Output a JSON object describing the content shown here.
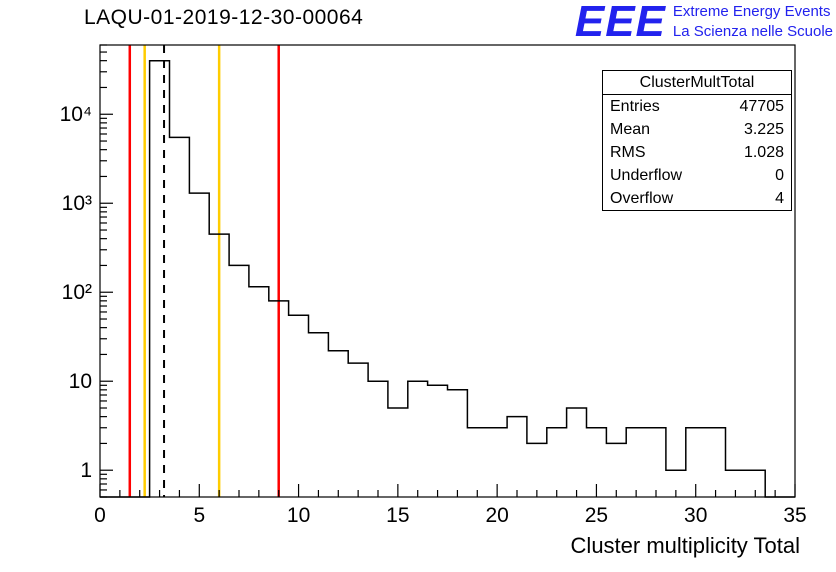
{
  "page": {
    "title": "LAQU-01-2019-12-30-00064"
  },
  "logo": {
    "mark": "EEE",
    "line1": "Extreme Energy Events",
    "line2": "La Scienza nelle Scuole",
    "color": "#2222ee"
  },
  "stats_box": {
    "title": "ClusterMultTotal",
    "rows": [
      {
        "label": "Entries",
        "value": "47705"
      },
      {
        "label": "Mean",
        "value": "3.225"
      },
      {
        "label": "RMS",
        "value": "1.028"
      },
      {
        "label": "Underflow",
        "value": "0"
      },
      {
        "label": "Overflow",
        "value": "4"
      }
    ]
  },
  "chart_data": {
    "type": "bar",
    "subtype": "step-outline-histogram",
    "title": "LAQU-01-2019-12-30-00064",
    "xlabel": "Cluster multiplicity Total",
    "ylabel": "",
    "yscale": "log",
    "grid": false,
    "legend": false,
    "xlim": [
      0,
      35
    ],
    "ylim": [
      0.5,
      60000
    ],
    "bin_width": 1,
    "bin_centers": [
      0,
      1,
      2,
      3,
      4,
      5,
      6,
      7,
      8,
      9,
      10,
      11,
      12,
      13,
      14,
      15,
      16,
      17,
      18,
      19,
      20,
      21,
      22,
      23,
      24,
      25,
      26,
      27,
      28,
      29,
      30,
      31,
      32,
      33,
      34,
      35
    ],
    "values": [
      0,
      0,
      0,
      40000,
      5500,
      1300,
      450,
      200,
      115,
      80,
      55,
      35,
      22,
      16,
      10,
      5,
      10,
      9,
      8,
      3,
      3,
      4,
      2,
      3,
      5,
      3,
      2,
      3,
      3,
      1,
      3,
      3,
      1,
      1,
      0,
      0
    ],
    "line_color": "#000000",
    "x_major_ticks": [
      0,
      5,
      10,
      15,
      20,
      25,
      30,
      35
    ],
    "y_major_ticks": [
      {
        "value": 1,
        "label": "1"
      },
      {
        "value": 10,
        "label": "10"
      },
      {
        "value": 100,
        "label": "10²"
      },
      {
        "value": 1000,
        "label": "10³"
      },
      {
        "value": 10000,
        "label": "10⁴"
      }
    ],
    "vlines": [
      {
        "x": 1.5,
        "color": "#ff0000",
        "style": "solid",
        "meaning": "lower-error-threshold"
      },
      {
        "x": 2.25,
        "color": "#ffcc00",
        "style": "solid",
        "meaning": "lower-warning-threshold"
      },
      {
        "x": 3.225,
        "color": "#000000",
        "style": "dashed",
        "meaning": "mean"
      },
      {
        "x": 6,
        "color": "#ffcc00",
        "style": "solid",
        "meaning": "upper-warning-threshold"
      },
      {
        "x": 9,
        "color": "#ff0000",
        "style": "solid",
        "meaning": "upper-error-threshold"
      }
    ],
    "stats": {
      "entries": 47705,
      "mean": 3.225,
      "rms": 1.028,
      "underflow": 0,
      "overflow": 4
    }
  }
}
